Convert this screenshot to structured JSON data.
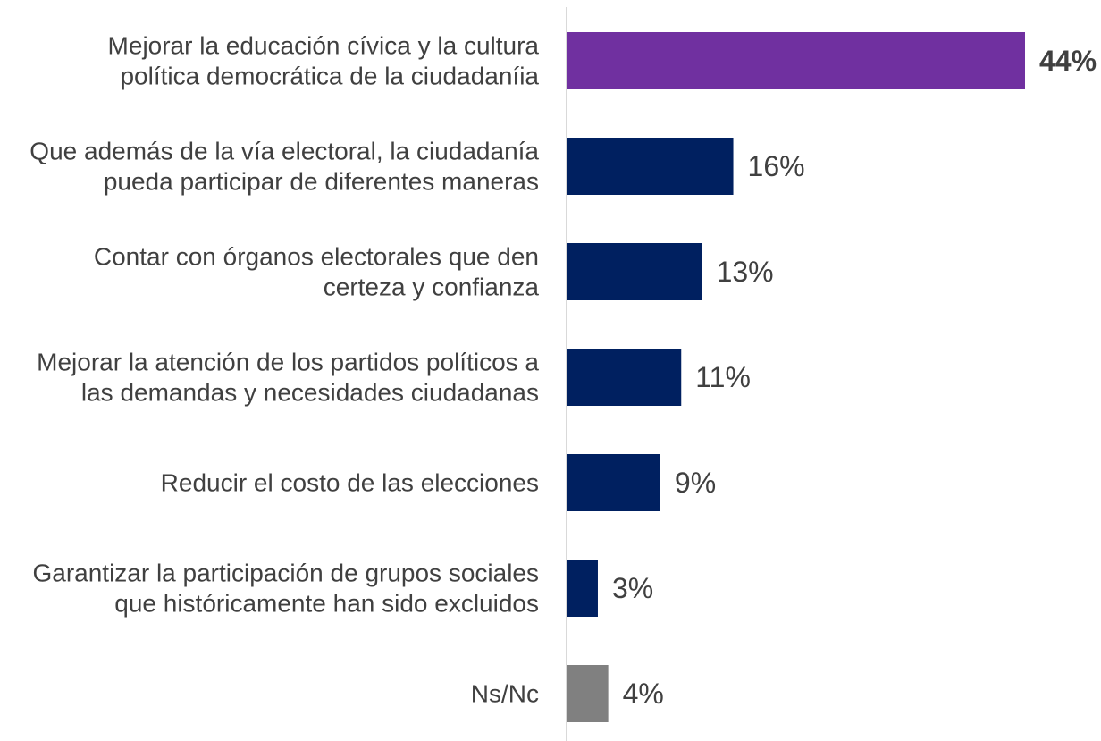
{
  "chart_data": {
    "type": "bar",
    "orientation": "horizontal",
    "title": "",
    "xlabel": "",
    "ylabel": "",
    "xlim": [
      0,
      44
    ],
    "grid": false,
    "legend": "none",
    "unit": "%",
    "colors": {
      "highlight": "#7030a0",
      "default": "#002060",
      "neutral": "#808080",
      "axis": "#d9d9d9",
      "text": "#404040"
    },
    "bars": [
      {
        "label_lines": [
          "Mejorar la educación cívica y la cultura",
          "política democrática de la ciudadaníia"
        ],
        "value": 44,
        "value_label": "44%",
        "color": "#7030a0",
        "bold_value": true
      },
      {
        "label_lines": [
          "Que además de la vía electoral, la ciudadanía",
          "pueda participar de diferentes maneras"
        ],
        "value": 16,
        "value_label": "16%",
        "color": "#002060",
        "bold_value": false
      },
      {
        "label_lines": [
          "Contar con órganos electorales que den",
          "certeza y confianza"
        ],
        "value": 13,
        "value_label": "13%",
        "color": "#002060",
        "bold_value": false
      },
      {
        "label_lines": [
          "Mejorar la atención de los partidos políticos a",
          "las demandas y necesidades ciudadanas"
        ],
        "value": 11,
        "value_label": "11%",
        "color": "#002060",
        "bold_value": false
      },
      {
        "label_lines": [
          "Reducir el costo de las elecciones"
        ],
        "value": 9,
        "value_label": "9%",
        "color": "#002060",
        "bold_value": false
      },
      {
        "label_lines": [
          "Garantizar la participación de grupos sociales",
          "que históricamente han sido excluidos"
        ],
        "value": 3,
        "value_label": "3%",
        "color": "#002060",
        "bold_value": false
      },
      {
        "label_lines": [
          "Ns/Nc"
        ],
        "value": 4,
        "value_label": "4%",
        "color": "#808080",
        "bold_value": false
      }
    ]
  }
}
